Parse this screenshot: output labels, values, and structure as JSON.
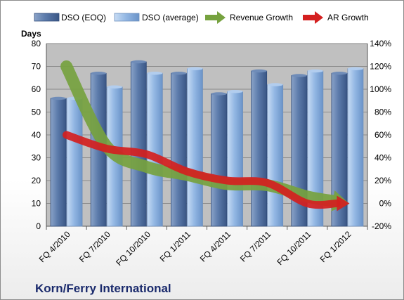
{
  "chart_data": {
    "type": "bar",
    "company": "Korn/Ferry International",
    "y_left_label": "Days",
    "y_left_range": [
      0,
      80
    ],
    "y_left_ticks": [
      "0",
      "10",
      "20",
      "30",
      "40",
      "50",
      "60",
      "70",
      "80"
    ],
    "y_right_range": [
      -20,
      140
    ],
    "y_right_ticks": [
      "-20%",
      "0%",
      "20%",
      "40%",
      "60%",
      "80%",
      "100%",
      "120%",
      "140%"
    ],
    "categories": [
      "FQ 4/2010",
      "FQ 7/2010",
      "FQ 10/2010",
      "FQ 1/2011",
      "FQ 4/2011",
      "FQ 7/2011",
      "FQ 10/2011",
      "FQ 1/2012"
    ],
    "grid": true,
    "legend_position": "top",
    "series": [
      {
        "name": "DSO (EOQ)",
        "kind": "bar",
        "axis": "left",
        "color": "#4f6f9e",
        "values": [
          56,
          67,
          72,
          67,
          58,
          68,
          66,
          67
        ]
      },
      {
        "name": "DSO (average)",
        "kind": "bar",
        "axis": "left",
        "color": "#8fb4e3",
        "values": [
          56,
          61,
          67,
          69,
          59,
          62,
          68,
          69
        ]
      },
      {
        "name": "Revenue Growth",
        "kind": "arrow-line",
        "axis": "right",
        "color": "#76a23f",
        "values": [
          120,
          50,
          32,
          25,
          17,
          16,
          6,
          0
        ]
      },
      {
        "name": "AR Growth",
        "kind": "arrow-line",
        "axis": "right",
        "color": "#d42020",
        "values": [
          60,
          48,
          43,
          28,
          20,
          18,
          0,
          0
        ]
      }
    ]
  }
}
